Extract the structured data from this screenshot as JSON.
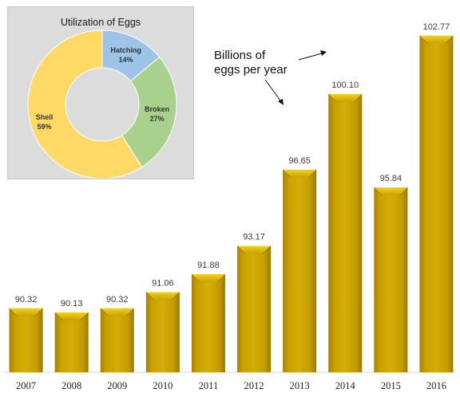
{
  "chart_data": [
    {
      "type": "bar",
      "categories": [
        "2007",
        "2008",
        "2009",
        "2010",
        "2011",
        "2012",
        "2013",
        "2014",
        "2015",
        "2016"
      ],
      "values": [
        90.32,
        90.13,
        90.32,
        91.06,
        91.88,
        93.17,
        96.65,
        100.1,
        95.84,
        102.77
      ],
      "value_labels": [
        "90.32",
        "90.13",
        "90.32",
        "91.06",
        "91.88",
        "93.17",
        "96.65",
        "100.10",
        "95.84",
        "102.77"
      ],
      "ylim": [
        87.4,
        103.6
      ],
      "annotation": [
        "Billions of",
        "eggs per year"
      ],
      "bar_color": "#c8a000",
      "bar_top_color": "#e6c20a",
      "grid": false
    },
    {
      "type": "pie",
      "title": "Utilization of Eggs",
      "slices": [
        {
          "label": "Hatching",
          "percent": "14%",
          "value": 14,
          "color": "#9dc3e6"
        },
        {
          "label": "Broken",
          "percent": "27%",
          "value": 27,
          "color": "#a9d18e"
        },
        {
          "label": "Shell",
          "percent": "59%",
          "value": 59,
          "color": "#ffd966"
        }
      ]
    }
  ]
}
